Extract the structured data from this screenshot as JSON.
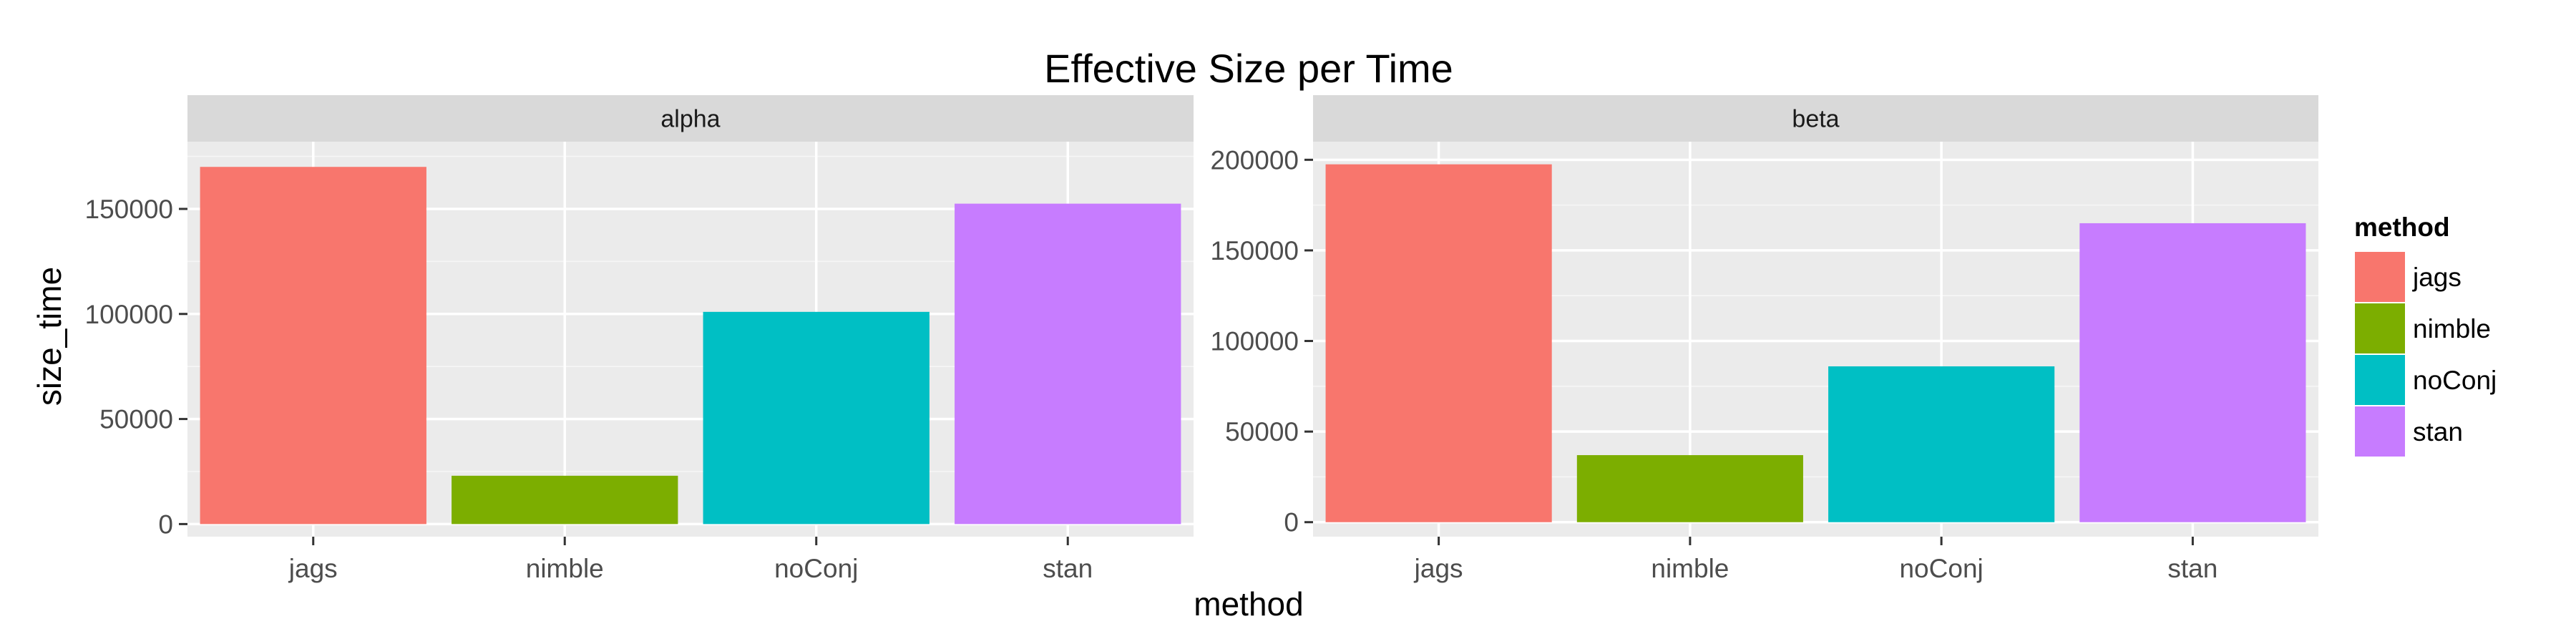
{
  "chart_data": {
    "type": "bar",
    "title": "Effective Size per Time",
    "xlabel": "method",
    "ylabel": "size_time",
    "categories": [
      "jags",
      "nimble",
      "noConj",
      "stan"
    ],
    "colors": {
      "jags": "#F8766D",
      "nimble": "#7CAE00",
      "noConj": "#00BFC4",
      "stan": "#C77CFF",
      "panel_background": "#EBEBEB",
      "strip_background": "#D9D9D9",
      "gridline": "#FFFFFF"
    },
    "grid": true,
    "legend": {
      "title": "method",
      "position": "right",
      "entries": [
        "jags",
        "nimble",
        "noConj",
        "stan"
      ]
    },
    "facets": [
      {
        "name": "alpha",
        "values": [
          170000,
          23000,
          101000,
          152500
        ],
        "ylim": [
          -6000,
          182000
        ],
        "yticks": [
          0,
          50000,
          100000,
          150000
        ],
        "ytick_labels": [
          "0",
          "50000",
          "100000",
          "150000"
        ]
      },
      {
        "name": "beta",
        "values": [
          197500,
          37000,
          86000,
          165000
        ],
        "ylim": [
          -8000,
          210000
        ],
        "yticks": [
          0,
          50000,
          100000,
          150000,
          200000
        ],
        "ytick_labels": [
          "0",
          "50000",
          "100000",
          "150000",
          "200000"
        ]
      }
    ]
  }
}
